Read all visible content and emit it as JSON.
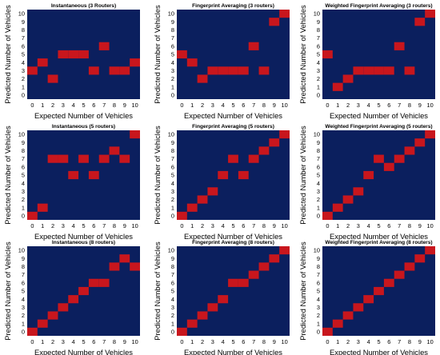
{
  "colors": {
    "background": "#0b1f5e",
    "cell": "#c8161d"
  },
  "chart_data": [
    {
      "type": "heatmap",
      "title": "Instantaneous (3 Routers)",
      "xlabel": "Expected Number of Vehicles",
      "ylabel": "Predicted Number of Vehicles",
      "x_ticks": [
        "0",
        "1",
        "2",
        "3",
        "4",
        "5",
        "6",
        "7",
        "8",
        "9",
        "10"
      ],
      "y_ticks": [
        "0",
        "1",
        "2",
        "3",
        "4",
        "5",
        "6",
        "7",
        "8",
        "9",
        "10"
      ],
      "points": [
        [
          0,
          3
        ],
        [
          1,
          4
        ],
        [
          2,
          2
        ],
        [
          3,
          5
        ],
        [
          4,
          5
        ],
        [
          5,
          5
        ],
        [
          6,
          3
        ],
        [
          7,
          6
        ],
        [
          8,
          3
        ],
        [
          9,
          3
        ],
        [
          10,
          4
        ]
      ]
    },
    {
      "type": "heatmap",
      "title": "Fingerprint Averaging (3 routers)",
      "xlabel": "Expected Number of Vehicles",
      "ylabel": "Predicted Number of Vehicles",
      "x_ticks": [
        "0",
        "1",
        "2",
        "3",
        "4",
        "5",
        "6",
        "7",
        "8",
        "9",
        "10"
      ],
      "y_ticks": [
        "0",
        "1",
        "2",
        "3",
        "4",
        "5",
        "6",
        "7",
        "8",
        "9",
        "10"
      ],
      "points": [
        [
          0,
          5
        ],
        [
          1,
          4
        ],
        [
          2,
          2
        ],
        [
          3,
          3
        ],
        [
          4,
          3
        ],
        [
          5,
          3
        ],
        [
          6,
          3
        ],
        [
          7,
          6
        ],
        [
          8,
          3
        ],
        [
          9,
          9
        ],
        [
          10,
          10
        ]
      ]
    },
    {
      "type": "heatmap",
      "title": "Weighted Fingerprint Averaging (3 routers)",
      "xlabel": "Expected Number of Vehicles",
      "ylabel": "Predicted Number of Vehicles",
      "x_ticks": [
        "0",
        "1",
        "2",
        "3",
        "4",
        "5",
        "6",
        "7",
        "8",
        "9",
        "10"
      ],
      "y_ticks": [
        "0",
        "1",
        "2",
        "3",
        "4",
        "5",
        "6",
        "7",
        "8",
        "9",
        "10"
      ],
      "points": [
        [
          0,
          5
        ],
        [
          1,
          1
        ],
        [
          2,
          2
        ],
        [
          3,
          3
        ],
        [
          4,
          3
        ],
        [
          5,
          3
        ],
        [
          6,
          3
        ],
        [
          7,
          6
        ],
        [
          8,
          3
        ],
        [
          9,
          9
        ],
        [
          10,
          10
        ]
      ]
    },
    {
      "type": "heatmap",
      "title": "Instantaneous (5 routers)",
      "xlabel": "Expected Number of Vehicles",
      "ylabel": "Predicted Number of Vehicles",
      "x_ticks": [
        "0",
        "1",
        "2",
        "3",
        "4",
        "5",
        "6",
        "7",
        "8",
        "9",
        "10"
      ],
      "y_ticks": [
        "0",
        "1",
        "2",
        "3",
        "4",
        "5",
        "6",
        "7",
        "8",
        "9",
        "10"
      ],
      "points": [
        [
          0,
          0
        ],
        [
          1,
          1
        ],
        [
          2,
          7
        ],
        [
          3,
          7
        ],
        [
          4,
          5
        ],
        [
          5,
          7
        ],
        [
          6,
          5
        ],
        [
          7,
          7
        ],
        [
          8,
          8
        ],
        [
          9,
          7
        ],
        [
          10,
          10
        ]
      ]
    },
    {
      "type": "heatmap",
      "title": "Fingerprint Averaging (5 routers)",
      "xlabel": "Expected Number of Vehicles",
      "ylabel": "Predicted Number of Vehicles",
      "x_ticks": [
        "0",
        "1",
        "2",
        "3",
        "4",
        "5",
        "6",
        "7",
        "8",
        "9",
        "10"
      ],
      "y_ticks": [
        "0",
        "1",
        "2",
        "3",
        "4",
        "5",
        "6",
        "7",
        "8",
        "9",
        "10"
      ],
      "points": [
        [
          0,
          0
        ],
        [
          1,
          1
        ],
        [
          2,
          2
        ],
        [
          3,
          3
        ],
        [
          4,
          5
        ],
        [
          5,
          7
        ],
        [
          6,
          5
        ],
        [
          7,
          7
        ],
        [
          8,
          8
        ],
        [
          9,
          9
        ],
        [
          10,
          10
        ]
      ]
    },
    {
      "type": "heatmap",
      "title": "Weighted Fingerprint Averaging (5 routers)",
      "xlabel": "Expected Number of Vehicles",
      "ylabel": "Predicted Number of Vehicles",
      "x_ticks": [
        "0",
        "1",
        "2",
        "3",
        "4",
        "5",
        "6",
        "7",
        "8",
        "9",
        "10"
      ],
      "y_ticks": [
        "0",
        "1",
        "2",
        "3",
        "4",
        "5",
        "6",
        "7",
        "8",
        "9",
        "10"
      ],
      "points": [
        [
          0,
          0
        ],
        [
          1,
          1
        ],
        [
          2,
          2
        ],
        [
          3,
          3
        ],
        [
          4,
          5
        ],
        [
          5,
          7
        ],
        [
          6,
          6
        ],
        [
          7,
          7
        ],
        [
          8,
          8
        ],
        [
          9,
          9
        ],
        [
          10,
          10
        ]
      ]
    },
    {
      "type": "heatmap",
      "title": "Instantaneous (8 routers)",
      "xlabel": "Expected Number of Vehicles",
      "ylabel": "Predicted Number of Vehicles",
      "x_ticks": [
        "0",
        "1",
        "2",
        "3",
        "4",
        "5",
        "6",
        "7",
        "8",
        "9",
        "10"
      ],
      "y_ticks": [
        "0",
        "1",
        "2",
        "3",
        "4",
        "5",
        "6",
        "7",
        "8",
        "9",
        "10"
      ],
      "points": [
        [
          0,
          0
        ],
        [
          1,
          1
        ],
        [
          2,
          2
        ],
        [
          3,
          3
        ],
        [
          4,
          4
        ],
        [
          5,
          5
        ],
        [
          6,
          6
        ],
        [
          7,
          6
        ],
        [
          8,
          8
        ],
        [
          9,
          9
        ],
        [
          10,
          8
        ]
      ]
    },
    {
      "type": "heatmap",
      "title": "Fingerprint Averaging (8 routers)",
      "xlabel": "Expected Number of Vehicles",
      "ylabel": "Predicted Number of Vehicles",
      "x_ticks": [
        "0",
        "1",
        "2",
        "3",
        "4",
        "5",
        "6",
        "7",
        "8",
        "9",
        "10"
      ],
      "y_ticks": [
        "0",
        "1",
        "2",
        "3",
        "4",
        "5",
        "6",
        "7",
        "8",
        "9",
        "10"
      ],
      "points": [
        [
          0,
          0
        ],
        [
          1,
          1
        ],
        [
          2,
          2
        ],
        [
          3,
          3
        ],
        [
          4,
          4
        ],
        [
          5,
          6
        ],
        [
          6,
          6
        ],
        [
          7,
          7
        ],
        [
          8,
          8
        ],
        [
          9,
          9
        ],
        [
          10,
          10
        ]
      ]
    },
    {
      "type": "heatmap",
      "title": "Weighted Fingerprint Averaging (8 routers)",
      "xlabel": "Expected Number of Vehicles",
      "ylabel": "Predicted Number of Vehicles",
      "x_ticks": [
        "0",
        "1",
        "2",
        "3",
        "4",
        "5",
        "6",
        "7",
        "8",
        "9",
        "10"
      ],
      "y_ticks": [
        "0",
        "1",
        "2",
        "3",
        "4",
        "5",
        "6",
        "7",
        "8",
        "9",
        "10"
      ],
      "points": [
        [
          0,
          0
        ],
        [
          1,
          1
        ],
        [
          2,
          2
        ],
        [
          3,
          3
        ],
        [
          4,
          4
        ],
        [
          5,
          5
        ],
        [
          6,
          6
        ],
        [
          7,
          7
        ],
        [
          8,
          8
        ],
        [
          9,
          9
        ],
        [
          10,
          10
        ]
      ]
    }
  ]
}
